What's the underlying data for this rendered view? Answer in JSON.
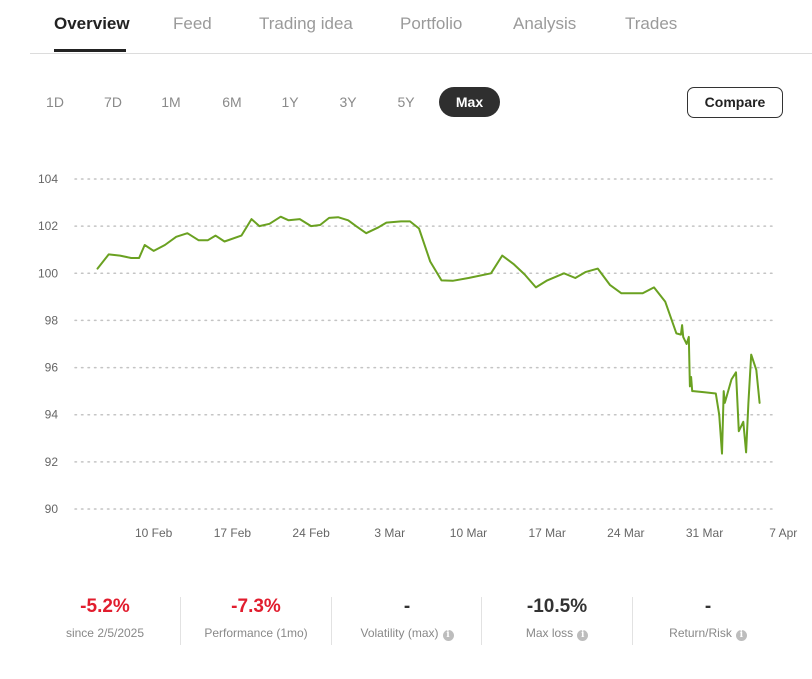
{
  "tabs": [
    {
      "label": "Overview",
      "active": true
    },
    {
      "label": "Feed"
    },
    {
      "label": "Trading idea"
    },
    {
      "label": "Portfolio"
    },
    {
      "label": "Analysis"
    },
    {
      "label": "Trades"
    }
  ],
  "ranges": [
    {
      "label": "1D"
    },
    {
      "label": "7D"
    },
    {
      "label": "1M"
    },
    {
      "label": "6M"
    },
    {
      "label": "1Y"
    },
    {
      "label": "3Y"
    },
    {
      "label": "5Y"
    },
    {
      "label": "Max",
      "active": true
    }
  ],
  "compare_label": "Compare",
  "chart_data": {
    "type": "line",
    "line_color": "#6aa121",
    "grid": "dotted horizontal",
    "ylim": [
      90,
      104
    ],
    "yticks": [
      104,
      102,
      100,
      98,
      96,
      94,
      92,
      90
    ],
    "xticks": [
      "10 Feb",
      "17 Feb",
      "24 Feb",
      "3 Mar",
      "10 Mar",
      "17 Mar",
      "24 Mar",
      "31 Mar",
      "7 Apr"
    ],
    "series": [
      {
        "points": [
          [
            2.0,
            100.2
          ],
          [
            3.0,
            100.8
          ],
          [
            4.0,
            100.75
          ],
          [
            5.0,
            100.65
          ],
          [
            5.7,
            100.65
          ],
          [
            6.2,
            101.2
          ],
          [
            7.0,
            100.95
          ],
          [
            8.0,
            101.2
          ],
          [
            9.0,
            101.55
          ],
          [
            10.0,
            101.7
          ],
          [
            11.0,
            101.4
          ],
          [
            11.8,
            101.4
          ],
          [
            12.5,
            101.6
          ],
          [
            13.3,
            101.35
          ],
          [
            14.8,
            101.6
          ],
          [
            15.7,
            102.3
          ],
          [
            16.4,
            102.0
          ],
          [
            17.3,
            102.1
          ],
          [
            18.3,
            102.4
          ],
          [
            19.0,
            102.25
          ],
          [
            20.0,
            102.3
          ],
          [
            21.0,
            102.0
          ],
          [
            21.8,
            102.05
          ],
          [
            22.6,
            102.35
          ],
          [
            23.4,
            102.38
          ],
          [
            24.3,
            102.25
          ],
          [
            25.0,
            102.0
          ],
          [
            25.9,
            101.7
          ],
          [
            27.0,
            101.95
          ],
          [
            27.7,
            102.15
          ],
          [
            29.0,
            102.2
          ],
          [
            29.8,
            102.2
          ],
          [
            30.6,
            101.9
          ],
          [
            31.6,
            100.5
          ],
          [
            32.6,
            99.7
          ],
          [
            33.6,
            99.68
          ],
          [
            35.0,
            99.8
          ],
          [
            37.0,
            100.0
          ],
          [
            38.0,
            100.75
          ],
          [
            39.0,
            100.4
          ],
          [
            40.0,
            99.95
          ],
          [
            41.0,
            99.4
          ],
          [
            42.0,
            99.7
          ],
          [
            43.5,
            100.0
          ],
          [
            44.5,
            99.8
          ],
          [
            45.4,
            100.05
          ],
          [
            46.5,
            100.2
          ],
          [
            47.6,
            99.5
          ],
          [
            48.6,
            99.15
          ],
          [
            49.6,
            99.15
          ],
          [
            50.5,
            99.15
          ],
          [
            51.5,
            99.4
          ],
          [
            52.5,
            98.8
          ],
          [
            53.5,
            97.45
          ],
          [
            53.9,
            97.4
          ],
          [
            54.0,
            97.8
          ],
          [
            54.1,
            97.3
          ],
          [
            54.4,
            97.0
          ],
          [
            54.6,
            97.3
          ],
          [
            54.7,
            95.2
          ],
          [
            54.8,
            95.6
          ],
          [
            54.9,
            95.0
          ],
          [
            55.0,
            95.0
          ],
          [
            56.0,
            94.95
          ],
          [
            57.0,
            94.9
          ],
          [
            57.3,
            94.0
          ],
          [
            57.55,
            92.35
          ],
          [
            57.7,
            95.0
          ],
          [
            57.8,
            94.5
          ],
          [
            58.4,
            95.5
          ],
          [
            58.8,
            95.8
          ],
          [
            59.05,
            93.3
          ],
          [
            59.45,
            93.7
          ],
          [
            59.7,
            92.4
          ],
          [
            59.9,
            94.5
          ],
          [
            60.15,
            96.55
          ],
          [
            60.6,
            95.9
          ],
          [
            60.9,
            94.5
          ]
        ]
      }
    ]
  },
  "stats": [
    {
      "value": "-5.2%",
      "label": "since 2/5/2025",
      "info": false,
      "tone": "neg"
    },
    {
      "value": "-7.3%",
      "label": "Performance (1mo)",
      "info": false,
      "tone": "neg"
    },
    {
      "value": "-",
      "label": "Volatility (max)",
      "info": true,
      "tone": "neu"
    },
    {
      "value": "-10.5%",
      "label": "Max loss",
      "info": true,
      "tone": "neu"
    },
    {
      "value": "-",
      "label": "Return/Risk",
      "info": true,
      "tone": "neu"
    }
  ],
  "icons": {
    "info": "info-icon"
  },
  "colors": {
    "negative": "#e11d2e",
    "active_pill": "#2f2f2f",
    "line": "#6aa121"
  }
}
